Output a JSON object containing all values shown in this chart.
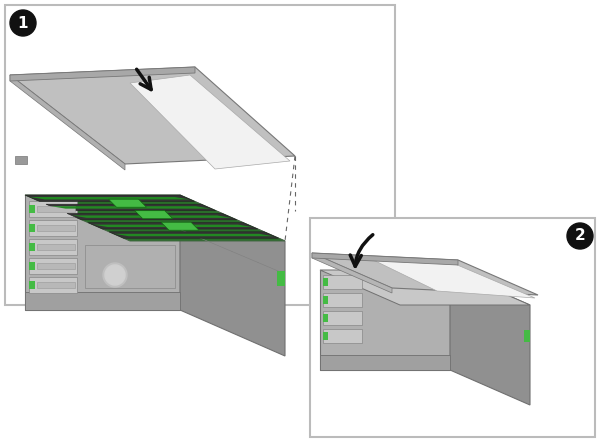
{
  "bg": "#ffffff",
  "panel_border": "#bbbbbb",
  "server_front": "#b0b0b0",
  "server_side": "#909090",
  "server_top": "#c8c8c8",
  "server_top_light": "#d8d8d8",
  "cover_main": "#c0c0c0",
  "cover_top_light": "#e8e8e8",
  "cover_white": "#f2f2f2",
  "cover_under": "#a8a8a8",
  "green": "#44bb44",
  "dark_green": "#228822",
  "pcb_green": "#2a6e2a",
  "arrow_color": "#111111",
  "circle_bg": "#111111",
  "circle_text": "#ffffff",
  "dashed": "#666666",
  "dark_strip": "#555555",
  "rail_dark": "#606060",
  "bezel": "#aaaaaa",
  "screw": "#999999"
}
